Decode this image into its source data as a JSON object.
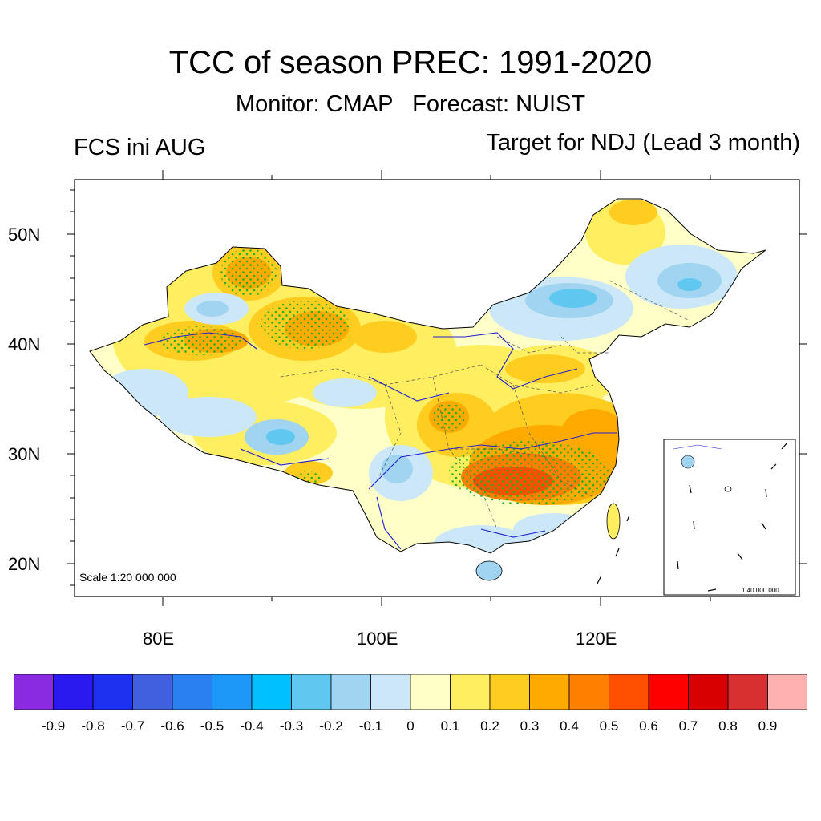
{
  "header": {
    "title": "TCC of season PREC: 1991-2020",
    "subtitle": "Monitor: CMAP   Forecast: NUIST",
    "left_label": "FCS ini AUG",
    "right_label": "Target for NDJ (Lead 3 month)"
  },
  "map": {
    "lat_labels": [
      "50N",
      "40N",
      "30N",
      "20N"
    ],
    "lon_labels": [
      "80E",
      "100E",
      "120E"
    ],
    "scale_text": "Scale 1:20 000 000",
    "inset_scale_text": "1:40 000 000",
    "colors": {
      "land_base": "#ffffc8",
      "frame": "#000000",
      "rivers": "#2020d0",
      "stipple": "#20b020"
    }
  },
  "colorbar": {
    "colors": [
      "#8a2be2",
      "#2a1af0",
      "#1e30f0",
      "#4060e0",
      "#2a80f0",
      "#1e98f8",
      "#00c0ff",
      "#60c8f0",
      "#a0d4f0",
      "#cce8f8",
      "#ffffc8",
      "#ffee60",
      "#ffcc20",
      "#ffaa00",
      "#ff8000",
      "#ff5000",
      "#ff0000",
      "#d80000",
      "#d83030",
      "#ffb0b0"
    ],
    "labels": [
      "-0.9",
      "-0.8",
      "-0.7",
      "-0.6",
      "-0.5",
      "-0.4",
      "-0.3",
      "-0.2",
      "-0.1",
      "0",
      "0.1",
      "0.2",
      "0.3",
      "0.4",
      "0.5",
      "0.6",
      "0.7",
      "0.8",
      "0.9"
    ]
  }
}
